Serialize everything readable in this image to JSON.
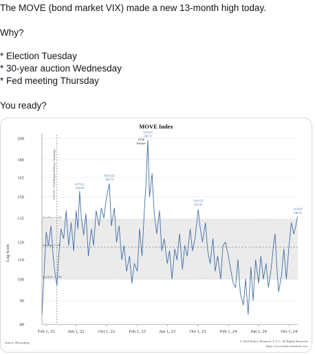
{
  "post": {
    "lines": [
      "The MOVE (bond market VIX) made a new 13-month high today.",
      "Why?",
      "* Election Tuesday",
      "* 30-year auction Wednesday",
      "* Fed meeting Thursday",
      "You ready?"
    ]
  },
  "chart_data": {
    "type": "line",
    "title": "MOVE Index",
    "ylabel": "Log Scale",
    "y_scale": "log",
    "ylim": [
      80,
      205
    ],
    "y_ticks": [
      80,
      90,
      100,
      110,
      120,
      135,
      150,
      165,
      180,
      200
    ],
    "x_tick_labels": [
      "Feb 1, 22",
      "Jun 1, 22",
      "Oct 1, 22",
      "Feb 1, 23",
      "Jun 1, 23",
      "Oct 1, 23",
      "Feb 1, 24",
      "Jun 1, 24",
      "Oct 1, 24"
    ],
    "x_range": [
      "2022-01-15",
      "2024-11-05"
    ],
    "bands": {
      "upper_label": "2nd Dev = 134",
      "average_label": "Average = 117",
      "lower_label": "2nd Dev = 100",
      "upper": 134,
      "average": 117,
      "lower": 100
    },
    "vertical_marker_label": "3/16/22 = Fed Begins Hiking Campaign",
    "vertical_marker_date": "2022-03-16",
    "annotations": [
      {
        "date": "2022-06-15",
        "value": 154.06,
        "text_top": "6/15/22",
        "text_bottom": "154.06",
        "dark": false
      },
      {
        "date": "2022-10-12",
        "value": 160.73,
        "text_top": "10/12/22",
        "text_bottom": "160.73",
        "dark": false
      },
      {
        "date": "2023-03-15",
        "value": 198.71,
        "text_top": "3/15/23",
        "text_bottom": "198.71",
        "dark": false
      },
      {
        "date": "2023-03-10",
        "value": 192,
        "text_top": "SVB",
        "text_bottom": "Failure",
        "dark": true
      },
      {
        "date": "2023-10-03",
        "value": 141.87,
        "text_top": "10/3/23",
        "text_bottom": "141.87",
        "dark": false
      },
      {
        "date": "2024-11-04",
        "value": 136.23,
        "text_top": "11/4/24",
        "text_bottom": "136.23",
        "dark": false
      }
    ],
    "series": [
      {
        "x": [
          "2022-01-15",
          "2022-02-01",
          "2022-02-10",
          "2022-02-20",
          "2022-03-01",
          "2022-03-08",
          "2022-03-16",
          "2022-03-22",
          "2022-04-01",
          "2022-04-12",
          "2022-04-22",
          "2022-05-02",
          "2022-05-12",
          "2022-05-22",
          "2022-06-01",
          "2022-06-08",
          "2022-06-15",
          "2022-06-22",
          "2022-07-01",
          "2022-07-10",
          "2022-07-20",
          "2022-08-01",
          "2022-08-10",
          "2022-08-20",
          "2022-09-01",
          "2022-09-10",
          "2022-09-20",
          "2022-10-01",
          "2022-10-12",
          "2022-10-20",
          "2022-11-01",
          "2022-11-10",
          "2022-11-20",
          "2022-12-01",
          "2022-12-10",
          "2022-12-20",
          "2023-01-01",
          "2023-01-10",
          "2023-01-20",
          "2023-02-01",
          "2023-02-10",
          "2023-02-20",
          "2023-03-01",
          "2023-03-08",
          "2023-03-15",
          "2023-03-22",
          "2023-04-01",
          "2023-04-10",
          "2023-04-20",
          "2023-05-01",
          "2023-05-10",
          "2023-05-20",
          "2023-06-01",
          "2023-06-10",
          "2023-06-20",
          "2023-07-01",
          "2023-07-10",
          "2023-07-20",
          "2023-08-01",
          "2023-08-10",
          "2023-08-20",
          "2023-09-01",
          "2023-09-10",
          "2023-09-20",
          "2023-10-03",
          "2023-10-10",
          "2023-10-20",
          "2023-11-01",
          "2023-11-10",
          "2023-11-20",
          "2023-12-01",
          "2023-12-10",
          "2023-12-20",
          "2024-01-01",
          "2024-01-10",
          "2024-01-20",
          "2024-02-01",
          "2024-02-10",
          "2024-02-20",
          "2024-03-01",
          "2024-03-10",
          "2024-03-20",
          "2024-04-01",
          "2024-04-10",
          "2024-04-20",
          "2024-05-01",
          "2024-05-10",
          "2024-05-20",
          "2024-06-01",
          "2024-06-10",
          "2024-06-20",
          "2024-07-01",
          "2024-07-10",
          "2024-07-20",
          "2024-08-01",
          "2024-08-06",
          "2024-08-12",
          "2024-08-20",
          "2024-09-01",
          "2024-09-10",
          "2024-09-20",
          "2024-10-01",
          "2024-10-10",
          "2024-10-20",
          "2024-10-28",
          "2024-11-04"
        ],
        "y": [
          84,
          126,
          118,
          130,
          112,
          103,
          97,
          110,
          128,
          122,
          140,
          118,
          132,
          115,
          140,
          128,
          154,
          135,
          124,
          138,
          112,
          128,
          118,
          140,
          130,
          142,
          135,
          150,
          160,
          130,
          142,
          120,
          130,
          110,
          118,
          104,
          112,
          98,
          108,
          104,
          128,
          112,
          140,
          160,
          198,
          150,
          168,
          138,
          125,
          140,
          115,
          122,
          108,
          115,
          100,
          116,
          110,
          125,
          105,
          118,
          112,
          128,
          115,
          122,
          141,
          130,
          120,
          132,
          115,
          108,
          122,
          104,
          112,
          100,
          118,
          120,
          112,
          105,
          98,
          96,
          110,
          93,
          88,
          100,
          84,
          106,
          90,
          110,
          98,
          112,
          100,
          108,
          96,
          104,
          120,
          125,
          108,
          94,
          102,
          116,
          100,
          118,
          132,
          125,
          130,
          136.23
        ]
      }
    ],
    "source": "Source: Bloomberg",
    "copyright": "© 2024 Bianco Research, L.L.C. All Rights Reserved",
    "url": "https://www.biancoresearch.com"
  }
}
